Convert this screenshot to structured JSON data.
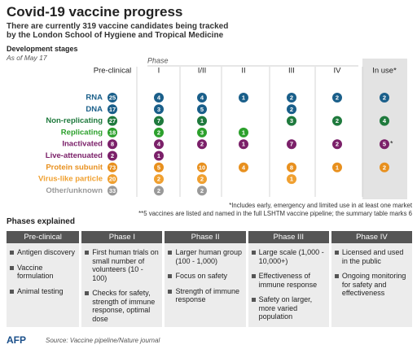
{
  "header": {
    "title": "Covid-19 vaccine progress",
    "subtitle": [
      "There are currently 319 vaccine candidates being tracked",
      "by the London School of Hygiene and Tropical Medicine"
    ],
    "section_label": "Development stages",
    "as_of": "As of May 17"
  },
  "table": {
    "phase_label": "Phase",
    "columns": [
      "Pre-clinical",
      "I",
      "I/II",
      "II",
      "III",
      "IV",
      "In use*"
    ],
    "rows": [
      {
        "label": "RNA",
        "color": "#1a5f8a",
        "values": [
          25,
          4,
          4,
          1,
          2,
          2,
          2
        ]
      },
      {
        "label": "DNA",
        "color": "#1a5f8a",
        "values": [
          17,
          3,
          5,
          null,
          2,
          null,
          null
        ]
      },
      {
        "label": "Non-replicating",
        "color": "#1f7a3d",
        "values": [
          27,
          7,
          1,
          null,
          3,
          2,
          4
        ]
      },
      {
        "label": "Replicating",
        "color": "#2ca02c",
        "values": [
          18,
          2,
          3,
          1,
          null,
          null,
          null
        ]
      },
      {
        "label": "Inactivated",
        "color": "#7b2069",
        "values": [
          8,
          4,
          2,
          1,
          7,
          2,
          5
        ],
        "in_use_note": "*"
      },
      {
        "label": "Live-attenuated",
        "color": "#7b2069",
        "values": [
          2,
          1,
          null,
          null,
          null,
          null,
          null
        ]
      },
      {
        "label": "Protein subunit",
        "color": "#e8901e",
        "values": [
          73,
          5,
          10,
          4,
          8,
          1,
          2
        ]
      },
      {
        "label": "Virus-like particle",
        "color": "#f0a030",
        "values": [
          20,
          2,
          2,
          null,
          1,
          null,
          null
        ]
      },
      {
        "label": "Other/unknown",
        "color": "#9a9a9a",
        "values": [
          33,
          2,
          2,
          null,
          null,
          null,
          null
        ]
      }
    ],
    "notes": [
      "*Includes early, emergency and limited use in at least one market",
      "**5 vaccines are listed and named in the full LSHTM vaccine pipeline; the summary table marks 6"
    ]
  },
  "phases": {
    "title": "Phases explained",
    "columns": [
      {
        "header": "Pre-clinical",
        "items": [
          "Antigen discovery",
          "Vaccine formulation",
          "Animal testing"
        ]
      },
      {
        "header": "Phase I",
        "items": [
          "First human trials on small number of volunteers (10 - 100)",
          "Checks for safety, strength of immune response, optimal dose"
        ]
      },
      {
        "header": "Phase II",
        "items": [
          "Larger human group (100 - 1,000)",
          "Focus on safety",
          "Strength of immune response"
        ]
      },
      {
        "header": "Phase III",
        "items": [
          "Large scale (1,000 - 10,000+)",
          "Effectiveness of immune response",
          "Safety on larger, more varied population"
        ]
      },
      {
        "header": "Phase IV",
        "items": [
          "Licensed and used in the public",
          "Ongoing monitoring for safety and effectiveness"
        ]
      }
    ]
  },
  "footer": {
    "logo": "AFP",
    "source": "Source: Vaccine pipeline/Nature journal"
  }
}
